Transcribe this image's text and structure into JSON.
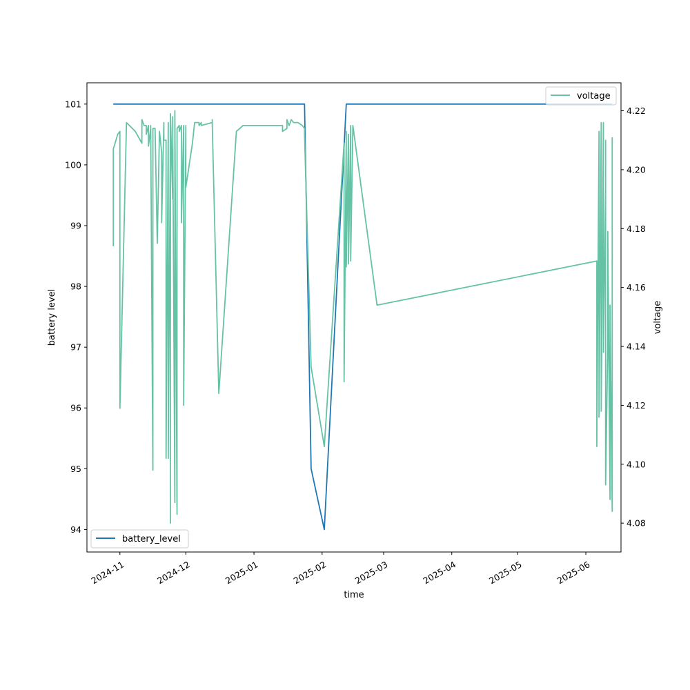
{
  "chart_data": {
    "type": "line",
    "xlabel": "time",
    "ylabel_left": "battery level",
    "ylabel_right": "voltage",
    "xlim": [
      "2024-10-17",
      "2025-06-17"
    ],
    "ylim_left": [
      93.63,
      101.35
    ],
    "ylim_right": [
      4.0702,
      4.2295
    ],
    "x_ticks": [
      "2024-11-01",
      "2024-12-01",
      "2025-01-01",
      "2025-02-01",
      "2025-03-01",
      "2025-04-01",
      "2025-05-01",
      "2025-06-01"
    ],
    "x_tick_labels": [
      "2024-11",
      "2024-12",
      "2025-01",
      "2025-02",
      "2025-03",
      "2025-04",
      "2025-05",
      "2025-06"
    ],
    "y_ticks_left": [
      94,
      95,
      96,
      97,
      98,
      99,
      100,
      101
    ],
    "y_ticks_right": [
      "4.08",
      "4.10",
      "4.12",
      "4.14",
      "4.16",
      "4.18",
      "4.20",
      "4.22"
    ],
    "grid": false,
    "series": [
      {
        "name": "battery_level",
        "axis": "left",
        "color": "#1f77b4",
        "legend": "bottom-left",
        "points": [
          [
            "2024-10-29",
            101
          ],
          [
            "2025-01-24",
            101
          ],
          [
            "2025-01-27",
            95
          ],
          [
            "2025-02-02",
            94
          ],
          [
            "2025-02-12",
            101
          ],
          [
            "2025-06-13",
            101
          ]
        ]
      },
      {
        "name": "voltage",
        "axis": "right",
        "color": "#66c2a5",
        "legend": "top-right",
        "points": [
          [
            "2024-10-29",
            4.174
          ],
          [
            "2024-10-29",
            4.207
          ],
          [
            "2024-10-31",
            4.212
          ],
          [
            "2024-11-01",
            4.213
          ],
          [
            "2024-11-01",
            4.119
          ],
          [
            "2024-11-04",
            4.216
          ],
          [
            "2024-11-08",
            4.213
          ],
          [
            "2024-11-11",
            4.209
          ],
          [
            "2024-11-11",
            4.217
          ],
          [
            "2024-11-12",
            4.215
          ],
          [
            "2024-11-13",
            4.215
          ],
          [
            "2024-11-13",
            4.212
          ],
          [
            "2024-11-14",
            4.215
          ],
          [
            "2024-11-14",
            4.208
          ],
          [
            "2024-11-15",
            4.214
          ],
          [
            "2024-11-15",
            4.215
          ],
          [
            "2024-11-16",
            4.098
          ],
          [
            "2024-11-16",
            4.214
          ],
          [
            "2024-11-17",
            4.214
          ],
          [
            "2024-11-18",
            4.175
          ],
          [
            "2024-11-19",
            4.213
          ],
          [
            "2024-11-20",
            4.206
          ],
          [
            "2024-11-20",
            4.182
          ],
          [
            "2024-11-21",
            4.216
          ],
          [
            "2024-11-21",
            4.21
          ],
          [
            "2024-11-22",
            4.21
          ],
          [
            "2024-11-22",
            4.102
          ],
          [
            "2024-11-23",
            4.216
          ],
          [
            "2024-11-23",
            4.102
          ],
          [
            "2024-11-24",
            4.216
          ],
          [
            "2024-11-24",
            4.08
          ],
          [
            "2024-11-24",
            4.219
          ],
          [
            "2024-11-25",
            4.19
          ],
          [
            "2024-11-25",
            4.218
          ],
          [
            "2024-11-26",
            4.087
          ],
          [
            "2024-11-26",
            4.22
          ],
          [
            "2024-11-27",
            4.083
          ],
          [
            "2024-11-27",
            4.214
          ],
          [
            "2024-11-28",
            4.215
          ],
          [
            "2024-11-28",
            4.213
          ],
          [
            "2024-11-29",
            4.215
          ],
          [
            "2024-11-29",
            4.182
          ],
          [
            "2024-11-30",
            4.215
          ],
          [
            "2024-11-30",
            4.12
          ],
          [
            "2024-12-01",
            4.215
          ],
          [
            "2024-12-01",
            4.194
          ],
          [
            "2024-12-04",
            4.209
          ],
          [
            "2024-12-05",
            4.216
          ],
          [
            "2024-12-07",
            4.216
          ],
          [
            "2024-12-07",
            4.215
          ],
          [
            "2024-12-08",
            4.216
          ],
          [
            "2024-12-08",
            4.215
          ],
          [
            "2024-12-13",
            4.216
          ],
          [
            "2024-12-13",
            4.217
          ],
          [
            "2024-12-13",
            4.216
          ],
          [
            "2024-12-16",
            4.124
          ],
          [
            "2024-12-24",
            4.213
          ],
          [
            "2024-12-27",
            4.215
          ],
          [
            "2025-01-14",
            4.215
          ],
          [
            "2025-01-14",
            4.213
          ],
          [
            "2025-01-16",
            4.214
          ],
          [
            "2025-01-16",
            4.217
          ],
          [
            "2025-01-17",
            4.215
          ],
          [
            "2025-01-18",
            4.217
          ],
          [
            "2025-01-19",
            4.216
          ],
          [
            "2025-01-21",
            4.216
          ],
          [
            "2025-01-23",
            4.215
          ],
          [
            "2025-01-24",
            4.214
          ],
          [
            "2025-01-24",
            4.212
          ],
          [
            "2025-01-27",
            4.133
          ],
          [
            "2025-02-02",
            4.106
          ],
          [
            "2025-02-11",
            4.209
          ],
          [
            "2025-02-11",
            4.128
          ],
          [
            "2025-02-12",
            4.213
          ],
          [
            "2025-02-12",
            4.167
          ],
          [
            "2025-02-13",
            4.212
          ],
          [
            "2025-02-13",
            4.168
          ],
          [
            "2025-02-14",
            4.215
          ],
          [
            "2025-02-14",
            4.169
          ],
          [
            "2025-02-15",
            4.215
          ],
          [
            "2025-02-15",
            4.215
          ],
          [
            "2025-02-26",
            4.154
          ],
          [
            "2025-06-06",
            4.169
          ],
          [
            "2025-06-06",
            4.106
          ],
          [
            "2025-06-07",
            4.213
          ],
          [
            "2025-06-07",
            4.116
          ],
          [
            "2025-06-08",
            4.216
          ],
          [
            "2025-06-08",
            4.118
          ],
          [
            "2025-06-09",
            4.216
          ],
          [
            "2025-06-09",
            4.138
          ],
          [
            "2025-06-10",
            4.194
          ],
          [
            "2025-06-10",
            4.21
          ],
          [
            "2025-06-10",
            4.093
          ],
          [
            "2025-06-11",
            4.142
          ],
          [
            "2025-06-11",
            4.179
          ],
          [
            "2025-06-12",
            4.088
          ],
          [
            "2025-06-12",
            4.154
          ],
          [
            "2025-06-13",
            4.084
          ],
          [
            "2025-06-13",
            4.158
          ],
          [
            "2025-06-13",
            4.211
          ]
        ]
      }
    ]
  }
}
